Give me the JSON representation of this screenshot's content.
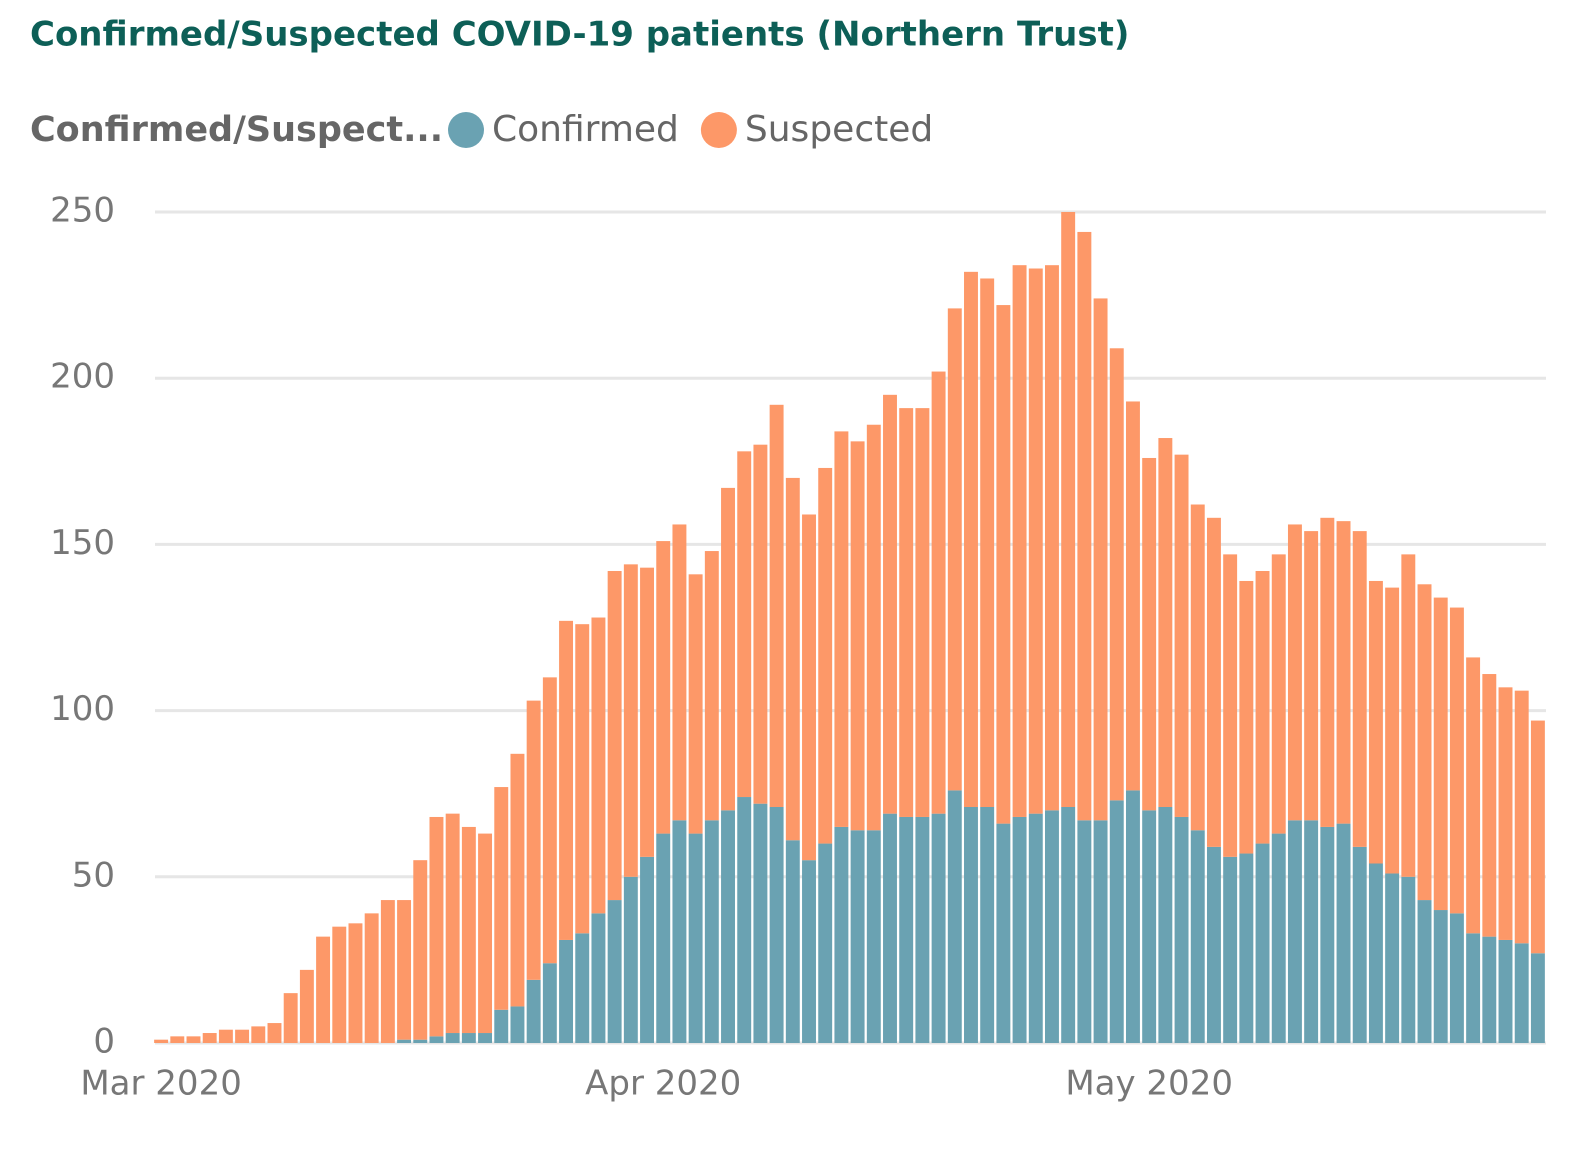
{
  "chart_data": {
    "type": "stacked_bar",
    "title": "Confirmed/Suspected COVID-19 patients (Northern Trust)",
    "legend_title": "Confirmed/Suspect...",
    "categories": [
      "Mar 2020",
      null,
      null,
      null,
      null,
      null,
      null,
      null,
      null,
      null,
      null,
      null,
      null,
      null,
      null,
      null,
      null,
      null,
      null,
      null,
      null,
      null,
      null,
      null,
      null,
      null,
      null,
      null,
      null,
      null,
      null,
      "Apr 2020",
      null,
      null,
      null,
      null,
      null,
      null,
      null,
      null,
      null,
      null,
      null,
      null,
      null,
      null,
      null,
      null,
      null,
      null,
      null,
      null,
      null,
      null,
      null,
      null,
      null,
      null,
      null,
      null,
      null,
      "May 2020",
      null,
      null,
      null,
      null,
      null,
      null,
      null,
      null,
      null,
      null,
      null,
      null,
      null,
      null,
      null,
      null,
      null,
      null,
      null,
      null,
      null,
      null,
      null,
      null
    ],
    "series": [
      {
        "name": "Confirmed",
        "color": "#6aa2b2",
        "values": [
          0,
          0,
          0,
          0,
          0,
          0,
          0,
          0,
          0,
          0,
          0,
          0,
          0,
          0,
          0,
          1,
          1,
          2,
          3,
          3,
          3,
          10,
          11,
          19,
          24,
          31,
          33,
          39,
          43,
          50,
          56,
          63,
          67,
          63,
          67,
          70,
          74,
          72,
          71,
          61,
          55,
          60,
          65,
          64,
          64,
          69,
          68,
          68,
          69,
          76,
          71,
          71,
          66,
          68,
          69,
          70,
          71,
          67,
          67,
          73,
          76,
          70,
          71,
          68,
          64,
          59,
          56,
          57,
          60,
          63,
          67,
          67,
          65,
          66,
          59,
          54,
          51,
          50,
          43,
          40,
          39,
          33,
          32,
          31,
          30,
          27
        ]
      },
      {
        "name": "Suspected",
        "color": "#fd9868",
        "values": [
          1,
          2,
          2,
          3,
          4,
          4,
          5,
          6,
          15,
          22,
          32,
          35,
          36,
          39,
          43,
          42,
          54,
          66,
          66,
          62,
          60,
          67,
          76,
          84,
          86,
          96,
          93,
          89,
          99,
          94,
          87,
          88,
          89,
          78,
          81,
          97,
          104,
          108,
          121,
          109,
          104,
          113,
          119,
          117,
          122,
          126,
          123,
          123,
          133,
          145,
          161,
          159,
          156,
          166,
          164,
          164,
          179,
          177,
          157,
          136,
          117,
          106,
          111,
          109,
          98,
          99,
          91,
          82,
          82,
          84,
          89,
          87,
          93,
          91,
          95,
          85,
          86,
          97,
          95,
          94,
          92,
          83,
          79,
          76,
          76,
          70
        ]
      }
    ],
    "ylim": [
      0,
      250
    ],
    "yticks": [
      0,
      50,
      100,
      150,
      200,
      250
    ],
    "grid": true
  }
}
